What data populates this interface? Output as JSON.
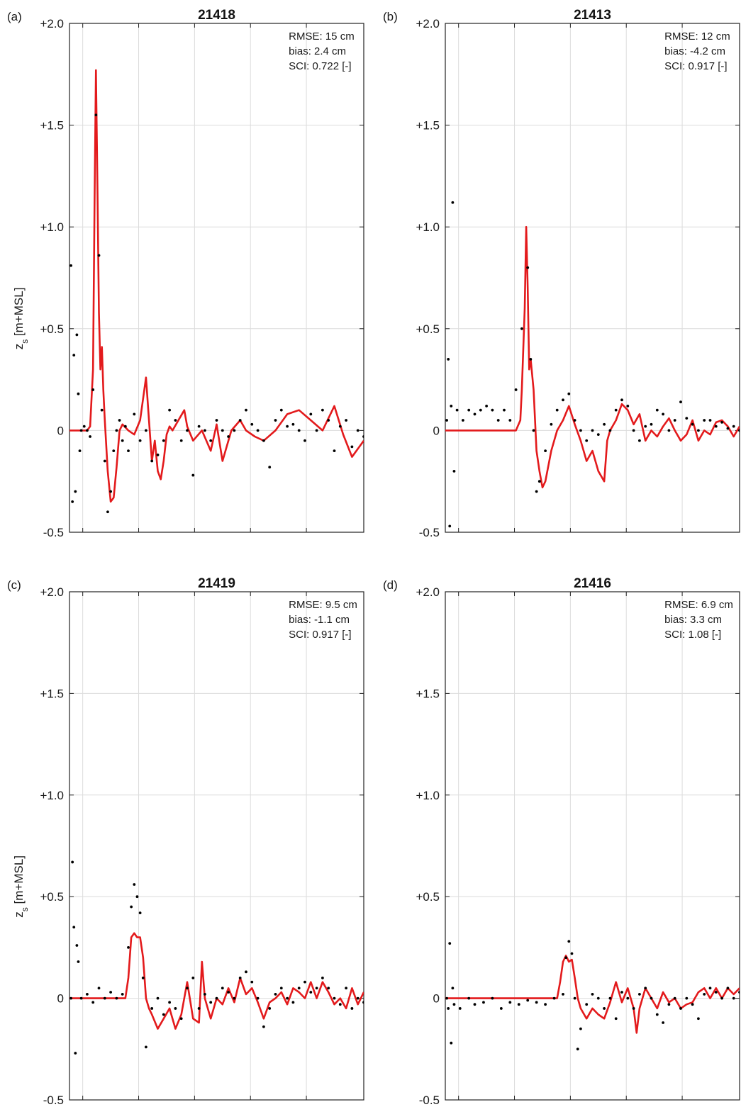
{
  "chart_data": [
    {
      "type": "line",
      "panel_label": "(a)",
      "title": "21418",
      "ylabel_main": "z",
      "ylabel_sub": "s",
      "ylabel_unit": " [m+MSL]",
      "ylim": [
        -0.5,
        2.0
      ],
      "yticks": [
        -0.5,
        0,
        0.5,
        1.0,
        1.5,
        2.0
      ],
      "ytick_labels": [
        "-0.5",
        "0",
        "+0.5",
        "+1.0",
        "+1.5",
        "+2.0"
      ],
      "grid": true,
      "stats": [
        "RMSE: 15 cm",
        "bias: 2.4 cm",
        "SCI: 0.722 [-]"
      ],
      "series": [
        {
          "kind": "model",
          "color": "#e31a1c",
          "x": [
            0.0,
            0.06,
            0.07,
            0.08,
            0.085,
            0.09,
            0.095,
            0.1,
            0.105,
            0.11,
            0.115,
            0.12,
            0.13,
            0.14,
            0.15,
            0.16,
            0.17,
            0.18,
            0.2,
            0.22,
            0.24,
            0.26,
            0.27,
            0.28,
            0.29,
            0.3,
            0.31,
            0.32,
            0.33,
            0.34,
            0.35,
            0.37,
            0.39,
            0.4,
            0.42,
            0.45,
            0.48,
            0.5,
            0.52,
            0.55,
            0.58,
            0.6,
            0.63,
            0.66,
            0.7,
            0.74,
            0.78,
            0.82,
            0.86,
            0.9,
            0.93,
            0.96,
            1.0
          ],
          "y": [
            0.0,
            0.0,
            0.02,
            0.3,
            1.1,
            1.77,
            1.2,
            0.58,
            0.3,
            0.41,
            0.2,
            0.05,
            -0.2,
            -0.35,
            -0.33,
            -0.18,
            0.0,
            0.03,
            0.0,
            -0.02,
            0.05,
            0.26,
            0.05,
            -0.15,
            -0.05,
            -0.2,
            -0.24,
            -0.15,
            -0.02,
            0.02,
            0.0,
            0.05,
            0.1,
            0.02,
            -0.05,
            0.0,
            -0.1,
            0.03,
            -0.15,
            0.0,
            0.05,
            0.0,
            -0.03,
            -0.05,
            0.0,
            0.08,
            0.1,
            0.05,
            0.0,
            0.12,
            -0.02,
            -0.13,
            -0.05
          ]
        },
        {
          "kind": "observed",
          "color": "#000000",
          "x": [
            0.005,
            0.01,
            0.015,
            0.02,
            0.025,
            0.03,
            0.035,
            0.04,
            0.05,
            0.06,
            0.07,
            0.08,
            0.09,
            0.1,
            0.11,
            0.12,
            0.13,
            0.14,
            0.15,
            0.16,
            0.17,
            0.18,
            0.19,
            0.2,
            0.22,
            0.24,
            0.26,
            0.28,
            0.3,
            0.32,
            0.34,
            0.36,
            0.38,
            0.4,
            0.42,
            0.44,
            0.46,
            0.48,
            0.5,
            0.52,
            0.54,
            0.56,
            0.58,
            0.6,
            0.62,
            0.64,
            0.66,
            0.68,
            0.7,
            0.72,
            0.74,
            0.76,
            0.78,
            0.8,
            0.82,
            0.84,
            0.86,
            0.88,
            0.9,
            0.92,
            0.94,
            0.96,
            0.98,
            1.0
          ],
          "y": [
            0.81,
            -0.35,
            0.37,
            -0.3,
            0.47,
            0.18,
            -0.1,
            0.0,
            0.02,
            0.0,
            -0.03,
            0.2,
            1.55,
            0.86,
            0.1,
            -0.15,
            -0.4,
            -0.3,
            -0.1,
            0.0,
            0.05,
            -0.05,
            0.02,
            -0.1,
            0.08,
            -0.05,
            0.0,
            -0.15,
            -0.12,
            -0.05,
            0.1,
            0.05,
            -0.05,
            0.0,
            -0.22,
            0.02,
            0.0,
            -0.05,
            0.05,
            0.0,
            -0.03,
            0.0,
            0.05,
            0.1,
            0.03,
            0.0,
            -0.05,
            -0.18,
            0.05,
            0.1,
            0.02,
            0.03,
            0.0,
            -0.05,
            0.08,
            0.0,
            0.1,
            0.05,
            -0.1,
            0.02,
            0.05,
            -0.08,
            0.0,
            -0.03
          ]
        }
      ]
    },
    {
      "type": "line",
      "panel_label": "(b)",
      "title": "21413",
      "ylim": [
        -0.5,
        2.0
      ],
      "yticks": [
        -0.5,
        0,
        0.5,
        1.0,
        1.5,
        2.0
      ],
      "ytick_labels": [
        "-0.5",
        "0",
        "+0.5",
        "+1.0",
        "+1.5",
        "+2.0"
      ],
      "grid": true,
      "stats": [
        "RMSE: 12 cm",
        "bias: -4.2 cm",
        "SCI: 0.917 [-]"
      ],
      "series": [
        {
          "kind": "model",
          "color": "#e31a1c",
          "x": [
            0.0,
            0.24,
            0.255,
            0.26,
            0.27,
            0.275,
            0.28,
            0.285,
            0.29,
            0.3,
            0.31,
            0.32,
            0.33,
            0.34,
            0.36,
            0.38,
            0.4,
            0.42,
            0.44,
            0.46,
            0.48,
            0.5,
            0.52,
            0.54,
            0.55,
            0.56,
            0.58,
            0.6,
            0.62,
            0.64,
            0.66,
            0.68,
            0.7,
            0.72,
            0.74,
            0.76,
            0.78,
            0.8,
            0.82,
            0.84,
            0.86,
            0.88,
            0.9,
            0.92,
            0.94,
            0.96,
            0.98,
            1.0
          ],
          "y": [
            0.0,
            0.0,
            0.05,
            0.2,
            0.6,
            1.0,
            0.7,
            0.3,
            0.35,
            0.2,
            -0.1,
            -0.2,
            -0.28,
            -0.25,
            -0.1,
            0.0,
            0.05,
            0.12,
            0.03,
            -0.05,
            -0.15,
            -0.1,
            -0.2,
            -0.25,
            -0.05,
            0.0,
            0.05,
            0.13,
            0.1,
            0.03,
            0.08,
            -0.05,
            0.0,
            -0.03,
            0.02,
            0.06,
            0.0,
            -0.05,
            -0.02,
            0.05,
            -0.05,
            0.0,
            -0.02,
            0.04,
            0.05,
            0.02,
            -0.03,
            0.02
          ]
        },
        {
          "kind": "observed",
          "color": "#000000",
          "x": [
            0.005,
            0.01,
            0.015,
            0.02,
            0.025,
            0.03,
            0.04,
            0.06,
            0.08,
            0.1,
            0.12,
            0.14,
            0.16,
            0.18,
            0.2,
            0.22,
            0.24,
            0.26,
            0.28,
            0.29,
            0.3,
            0.31,
            0.32,
            0.34,
            0.36,
            0.38,
            0.4,
            0.42,
            0.44,
            0.46,
            0.48,
            0.5,
            0.52,
            0.54,
            0.56,
            0.58,
            0.6,
            0.62,
            0.64,
            0.66,
            0.68,
            0.7,
            0.72,
            0.74,
            0.76,
            0.78,
            0.8,
            0.82,
            0.84,
            0.86,
            0.88,
            0.9,
            0.92,
            0.94,
            0.96,
            0.98,
            1.0
          ],
          "y": [
            0.05,
            0.35,
            -0.47,
            0.12,
            1.12,
            -0.2,
            0.1,
            0.05,
            0.1,
            0.08,
            0.1,
            0.12,
            0.1,
            0.05,
            0.1,
            0.05,
            0.2,
            0.5,
            0.8,
            0.35,
            0.0,
            -0.3,
            -0.25,
            -0.1,
            0.03,
            0.1,
            0.15,
            0.18,
            0.05,
            0.0,
            -0.05,
            0.0,
            -0.02,
            0.03,
            0.0,
            0.1,
            0.15,
            0.12,
            0.0,
            -0.05,
            0.02,
            0.03,
            0.1,
            0.08,
            0.0,
            0.05,
            0.14,
            0.06,
            0.03,
            0.0,
            0.05,
            0.05,
            0.02,
            0.04,
            0.01,
            0.02,
            0.0
          ]
        }
      ]
    },
    {
      "type": "line",
      "panel_label": "(c)",
      "title": "21419",
      "ylabel_main": "z",
      "ylabel_sub": "s",
      "ylabel_unit": " [m+MSL]",
      "ylim": [
        -0.5,
        2.0
      ],
      "yticks": [
        -0.5,
        0,
        0.5,
        1.0,
        1.5,
        2.0
      ],
      "ytick_labels": [
        "-0.5",
        "0",
        "+0.5",
        "+1.0",
        "+1.5",
        "+2.0"
      ],
      "grid": true,
      "stats": [
        "RMSE: 9.5 cm",
        "bias: -1.1 cm",
        "SCI: 0.917 [-]"
      ],
      "series": [
        {
          "kind": "model",
          "color": "#e31a1c",
          "x": [
            0.0,
            0.19,
            0.2,
            0.21,
            0.22,
            0.23,
            0.24,
            0.25,
            0.26,
            0.27,
            0.28,
            0.3,
            0.32,
            0.34,
            0.36,
            0.38,
            0.4,
            0.42,
            0.44,
            0.45,
            0.46,
            0.48,
            0.5,
            0.52,
            0.54,
            0.56,
            0.58,
            0.6,
            0.62,
            0.64,
            0.66,
            0.68,
            0.7,
            0.72,
            0.74,
            0.76,
            0.78,
            0.8,
            0.82,
            0.84,
            0.86,
            0.88,
            0.9,
            0.92,
            0.94,
            0.96,
            0.98,
            1.0
          ],
          "y": [
            0.0,
            0.0,
            0.1,
            0.3,
            0.32,
            0.3,
            0.3,
            0.2,
            0.0,
            -0.05,
            -0.08,
            -0.15,
            -0.1,
            -0.05,
            -0.15,
            -0.08,
            0.08,
            -0.1,
            -0.12,
            0.18,
            0.0,
            -0.1,
            0.0,
            -0.03,
            0.05,
            -0.02,
            0.1,
            0.02,
            0.05,
            -0.02,
            -0.1,
            -0.02,
            0.0,
            0.03,
            -0.03,
            0.05,
            0.03,
            0.0,
            0.08,
            0.0,
            0.08,
            0.03,
            -0.03,
            0.0,
            -0.05,
            0.05,
            -0.03,
            0.03
          ]
        },
        {
          "kind": "observed",
          "color": "#000000",
          "x": [
            0.005,
            0.01,
            0.015,
            0.02,
            0.025,
            0.03,
            0.04,
            0.06,
            0.08,
            0.1,
            0.12,
            0.14,
            0.16,
            0.18,
            0.2,
            0.21,
            0.22,
            0.23,
            0.24,
            0.25,
            0.26,
            0.28,
            0.3,
            0.32,
            0.34,
            0.36,
            0.38,
            0.4,
            0.42,
            0.44,
            0.46,
            0.48,
            0.5,
            0.52,
            0.54,
            0.56,
            0.58,
            0.6,
            0.62,
            0.64,
            0.66,
            0.68,
            0.7,
            0.72,
            0.74,
            0.76,
            0.78,
            0.8,
            0.82,
            0.84,
            0.86,
            0.88,
            0.9,
            0.92,
            0.94,
            0.96,
            0.98,
            1.0
          ],
          "y": [
            0.0,
            0.67,
            0.35,
            -0.27,
            0.26,
            0.18,
            0.0,
            0.02,
            -0.02,
            0.05,
            0.0,
            0.03,
            0.0,
            0.02,
            0.25,
            0.45,
            0.56,
            0.5,
            0.42,
            0.1,
            -0.24,
            -0.05,
            0.0,
            -0.08,
            -0.02,
            -0.05,
            -0.1,
            0.05,
            0.1,
            -0.05,
            0.02,
            -0.02,
            0.0,
            0.05,
            0.03,
            0.0,
            0.1,
            0.13,
            0.08,
            0.0,
            -0.14,
            -0.05,
            0.02,
            0.05,
            0.0,
            -0.02,
            0.05,
            0.08,
            0.03,
            0.05,
            0.1,
            0.05,
            0.0,
            -0.03,
            0.05,
            -0.05,
            0.0,
            -0.02
          ]
        }
      ]
    },
    {
      "type": "line",
      "panel_label": "(d)",
      "title": "21416",
      "ylim": [
        -0.5,
        2.0
      ],
      "yticks": [
        -0.5,
        0,
        0.5,
        1.0,
        1.5,
        2.0
      ],
      "ytick_labels": [
        "-0.5",
        "0",
        "+0.5",
        "+1.0",
        "+1.5",
        "+2.0"
      ],
      "grid": true,
      "stats": [
        "RMSE: 6.9 cm",
        "bias: 3.3 cm",
        "SCI: 1.08 [-]"
      ],
      "series": [
        {
          "kind": "model",
          "color": "#e31a1c",
          "x": [
            0.0,
            0.38,
            0.39,
            0.4,
            0.41,
            0.42,
            0.43,
            0.44,
            0.45,
            0.46,
            0.48,
            0.5,
            0.52,
            0.54,
            0.56,
            0.58,
            0.6,
            0.62,
            0.64,
            0.65,
            0.66,
            0.68,
            0.7,
            0.72,
            0.74,
            0.76,
            0.78,
            0.8,
            0.82,
            0.84,
            0.86,
            0.88,
            0.9,
            0.92,
            0.94,
            0.96,
            0.98,
            1.0
          ],
          "y": [
            0.0,
            0.0,
            0.08,
            0.18,
            0.21,
            0.18,
            0.19,
            0.1,
            0.0,
            -0.05,
            -0.1,
            -0.05,
            -0.08,
            -0.1,
            -0.02,
            0.08,
            -0.02,
            0.05,
            -0.05,
            -0.17,
            -0.05,
            0.05,
            0.0,
            -0.05,
            0.03,
            -0.02,
            0.0,
            -0.05,
            -0.03,
            -0.02,
            0.03,
            0.05,
            0.0,
            0.05,
            0.0,
            0.05,
            0.02,
            0.05
          ]
        },
        {
          "kind": "observed",
          "color": "#000000",
          "x": [
            0.005,
            0.01,
            0.015,
            0.02,
            0.025,
            0.03,
            0.05,
            0.08,
            0.1,
            0.13,
            0.16,
            0.19,
            0.22,
            0.25,
            0.28,
            0.31,
            0.34,
            0.37,
            0.4,
            0.41,
            0.42,
            0.43,
            0.44,
            0.45,
            0.46,
            0.48,
            0.5,
            0.52,
            0.54,
            0.56,
            0.58,
            0.6,
            0.62,
            0.64,
            0.66,
            0.68,
            0.7,
            0.72,
            0.74,
            0.76,
            0.78,
            0.8,
            0.82,
            0.84,
            0.86,
            0.88,
            0.9,
            0.92,
            0.94,
            0.96,
            0.98,
            1.0
          ],
          "y": [
            0.0,
            -0.05,
            0.27,
            -0.22,
            0.05,
            -0.03,
            -0.05,
            0.0,
            -0.03,
            -0.02,
            0.0,
            -0.05,
            -0.02,
            -0.03,
            -0.01,
            -0.02,
            -0.03,
            0.0,
            0.02,
            0.2,
            0.28,
            0.22,
            0.0,
            -0.25,
            -0.15,
            -0.03,
            0.02,
            0.0,
            -0.05,
            0.0,
            -0.1,
            0.03,
            0.0,
            -0.05,
            0.02,
            0.05,
            0.0,
            -0.08,
            -0.12,
            -0.03,
            0.0,
            -0.05,
            0.0,
            -0.03,
            -0.1,
            0.02,
            0.05,
            0.03,
            0.0,
            0.05,
            0.0,
            0.03
          ]
        }
      ]
    }
  ]
}
